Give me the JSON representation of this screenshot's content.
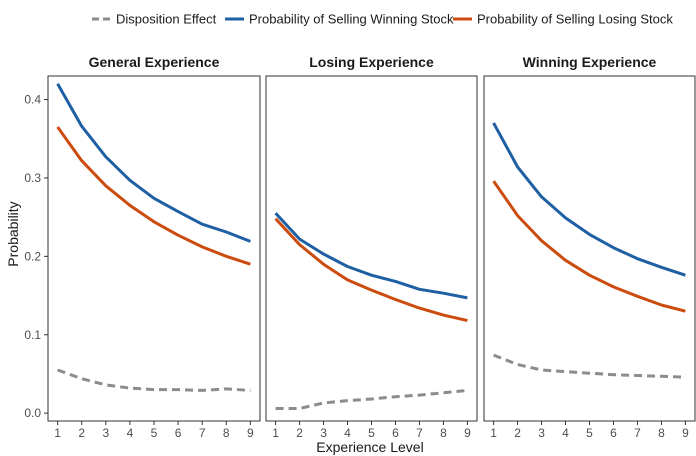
{
  "legend": {
    "items": [
      {
        "label": "Disposition Effect",
        "color": "#8c8c8c",
        "dash": "dashed"
      },
      {
        "label": "Probability of Selling Winning Stock",
        "color": "#1f5fa3",
        "dash": "solid"
      },
      {
        "label": "Probability of Selling Losing Stock",
        "color": "#cc4c0f",
        "dash": "solid"
      }
    ]
  },
  "chart_data": {
    "type": "line",
    "xlabel": "Experience Level",
    "ylabel": "Probability",
    "x": [
      1,
      2,
      3,
      4,
      5,
      6,
      7,
      8,
      9
    ],
    "x_ticks": [
      "1",
      "2",
      "3",
      "4",
      "5",
      "6",
      "7",
      "8",
      "9"
    ],
    "y_ticks": [
      "0.0",
      "0.1",
      "0.2",
      "0.3",
      "0.4"
    ],
    "ylim": [
      -0.01,
      0.43
    ],
    "xlim": [
      0.6,
      9.4
    ],
    "legend_position": "top",
    "grid": false,
    "facets": [
      {
        "title": "General Experience",
        "series": [
          {
            "name": "Disposition Effect",
            "color": "#8c8c8c",
            "dashed": true,
            "values": [
              0.055,
              0.044,
              0.036,
              0.032,
              0.03,
              0.03,
              0.029,
              0.031,
              0.029
            ]
          },
          {
            "name": "Probability of Selling Winning Stock",
            "color": "#1f5fa3",
            "dashed": false,
            "values": [
              0.42,
              0.366,
              0.327,
              0.297,
              0.274,
              0.257,
              0.241,
              0.231,
              0.219
            ]
          },
          {
            "name": "Probability of Selling Losing Stock",
            "color": "#cc4c0f",
            "dashed": false,
            "values": [
              0.365,
              0.322,
              0.29,
              0.265,
              0.244,
              0.227,
              0.212,
              0.2,
              0.19
            ]
          }
        ]
      },
      {
        "title": "Losing Experience",
        "series": [
          {
            "name": "Disposition Effect",
            "color": "#8c8c8c",
            "dashed": true,
            "values": [
              0.006,
              0.006,
              0.013,
              0.016,
              0.018,
              0.021,
              0.023,
              0.026,
              0.029
            ]
          },
          {
            "name": "Probability of Selling Winning Stock",
            "color": "#1f5fa3",
            "dashed": false,
            "values": [
              0.255,
              0.222,
              0.203,
              0.187,
              0.176,
              0.168,
              0.158,
              0.153,
              0.147
            ]
          },
          {
            "name": "Probability of Selling Losing Stock",
            "color": "#cc4c0f",
            "dashed": false,
            "values": [
              0.248,
              0.215,
              0.19,
              0.17,
              0.157,
              0.145,
              0.134,
              0.125,
              0.118
            ]
          }
        ]
      },
      {
        "title": "Winning Experience",
        "series": [
          {
            "name": "Disposition Effect",
            "color": "#8c8c8c",
            "dashed": true,
            "values": [
              0.074,
              0.062,
              0.055,
              0.053,
              0.051,
              0.049,
              0.048,
              0.047,
              0.046
            ]
          },
          {
            "name": "Probability of Selling Winning Stock",
            "color": "#1f5fa3",
            "dashed": false,
            "values": [
              0.37,
              0.314,
              0.276,
              0.249,
              0.228,
              0.211,
              0.197,
              0.186,
              0.176
            ]
          },
          {
            "name": "Probability of Selling Losing Stock",
            "color": "#cc4c0f",
            "dashed": false,
            "values": [
              0.296,
              0.252,
              0.22,
              0.195,
              0.176,
              0.161,
              0.149,
              0.138,
              0.13
            ]
          }
        ]
      }
    ]
  }
}
